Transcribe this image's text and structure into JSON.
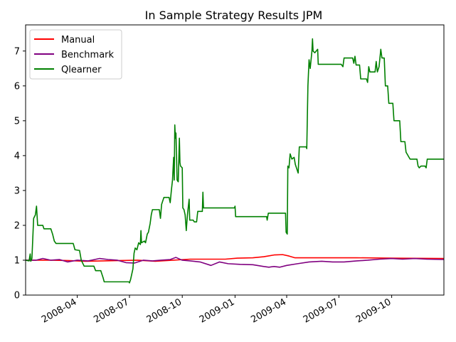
{
  "chart_data": {
    "type": "line",
    "title": "In Sample Strategy Results JPM",
    "xlabel": "",
    "ylabel": "",
    "ylim": [
      0,
      7.75
    ],
    "xlim": [
      "2008-01-02",
      "2009-12-31"
    ],
    "grid": false,
    "legend_position": "top-left",
    "y_ticks": [
      0,
      1,
      2,
      3,
      4,
      5,
      6,
      7
    ],
    "x_ticks": [
      {
        "date": "2008-04-01",
        "label": "2008-04"
      },
      {
        "date": "2008-07-01",
        "label": "2008-07"
      },
      {
        "date": "2008-10-01",
        "label": "2008-10"
      },
      {
        "date": "2009-01-01",
        "label": "2009-01"
      },
      {
        "date": "2009-04-01",
        "label": "2009-04"
      },
      {
        "date": "2009-07-01",
        "label": "2009-07"
      },
      {
        "date": "2009-10-01",
        "label": "2009-10"
      }
    ],
    "series": [
      {
        "name": "Manual",
        "color": "#ff0000",
        "points": [
          [
            "2008-01-02",
            1.0
          ],
          [
            "2008-02-15",
            1.0
          ],
          [
            "2008-03-15",
            0.99
          ],
          [
            "2008-04-15",
            0.97
          ],
          [
            "2008-05-15",
            0.98
          ],
          [
            "2008-06-15",
            0.99
          ],
          [
            "2008-07-15",
            1.0
          ],
          [
            "2008-08-15",
            0.97
          ],
          [
            "2008-09-15",
            1.0
          ],
          [
            "2008-10-15",
            1.03
          ],
          [
            "2008-11-15",
            1.03
          ],
          [
            "2008-12-15",
            1.03
          ],
          [
            "2009-01-05",
            1.06
          ],
          [
            "2009-02-01",
            1.07
          ],
          [
            "2009-02-20",
            1.1
          ],
          [
            "2009-03-10",
            1.15
          ],
          [
            "2009-03-25",
            1.16
          ],
          [
            "2009-04-05",
            1.12
          ],
          [
            "2009-04-15",
            1.07
          ],
          [
            "2009-06-01",
            1.07
          ],
          [
            "2009-08-01",
            1.07
          ],
          [
            "2009-10-01",
            1.06
          ],
          [
            "2009-12-31",
            1.05
          ]
        ]
      },
      {
        "name": "Benchmark",
        "color": "#800080",
        "points": [
          [
            "2008-01-02",
            1.0
          ],
          [
            "2008-01-20",
            1.0
          ],
          [
            "2008-02-01",
            1.05
          ],
          [
            "2008-02-15",
            1.0
          ],
          [
            "2008-03-01",
            1.02
          ],
          [
            "2008-03-15",
            0.95
          ],
          [
            "2008-04-01",
            1.0
          ],
          [
            "2008-04-20",
            0.98
          ],
          [
            "2008-05-10",
            1.05
          ],
          [
            "2008-05-25",
            1.02
          ],
          [
            "2008-06-10",
            1.0
          ],
          [
            "2008-06-25",
            0.93
          ],
          [
            "2008-07-10",
            0.92
          ],
          [
            "2008-07-25",
            1.0
          ],
          [
            "2008-08-10",
            0.98
          ],
          [
            "2008-08-25",
            1.0
          ],
          [
            "2008-09-10",
            1.02
          ],
          [
            "2008-09-20",
            1.08
          ],
          [
            "2008-10-01",
            1.0
          ],
          [
            "2008-10-15",
            0.98
          ],
          [
            "2008-11-01",
            0.95
          ],
          [
            "2008-11-20",
            0.85
          ],
          [
            "2008-12-05",
            0.95
          ],
          [
            "2008-12-20",
            0.9
          ],
          [
            "2009-01-10",
            0.88
          ],
          [
            "2009-02-01",
            0.87
          ],
          [
            "2009-02-20",
            0.82
          ],
          [
            "2009-03-01",
            0.8
          ],
          [
            "2009-03-10",
            0.82
          ],
          [
            "2009-03-20",
            0.8
          ],
          [
            "2009-04-01",
            0.85
          ],
          [
            "2009-04-20",
            0.9
          ],
          [
            "2009-05-10",
            0.95
          ],
          [
            "2009-06-01",
            0.97
          ],
          [
            "2009-06-20",
            0.95
          ],
          [
            "2009-07-10",
            0.95
          ],
          [
            "2009-08-01",
            0.98
          ],
          [
            "2009-08-20",
            1.0
          ],
          [
            "2009-09-10",
            1.03
          ],
          [
            "2009-10-01",
            1.05
          ],
          [
            "2009-10-20",
            1.03
          ],
          [
            "2009-11-10",
            1.05
          ],
          [
            "2009-12-01",
            1.03
          ],
          [
            "2009-12-31",
            1.02
          ]
        ]
      },
      {
        "name": "Qlearner",
        "color": "#008000",
        "points": [
          [
            "2008-01-02",
            1.0
          ],
          [
            "2008-01-08",
            0.98
          ],
          [
            "2008-01-10",
            1.18
          ],
          [
            "2008-01-11",
            0.97
          ],
          [
            "2008-01-13",
            1.05
          ],
          [
            "2008-01-16",
            2.2
          ],
          [
            "2008-01-19",
            2.3
          ],
          [
            "2008-01-21",
            2.55
          ],
          [
            "2008-01-23",
            2.0
          ],
          [
            "2008-02-01",
            2.0
          ],
          [
            "2008-02-03",
            1.9
          ],
          [
            "2008-02-15",
            1.9
          ],
          [
            "2008-02-18",
            1.75
          ],
          [
            "2008-02-21",
            1.55
          ],
          [
            "2008-02-24",
            1.48
          ],
          [
            "2008-03-25",
            1.48
          ],
          [
            "2008-03-28",
            1.3
          ],
          [
            "2008-04-05",
            1.28
          ],
          [
            "2008-04-08",
            1.0
          ],
          [
            "2008-04-13",
            0.83
          ],
          [
            "2008-04-30",
            0.83
          ],
          [
            "2008-05-03",
            0.7
          ],
          [
            "2008-05-12",
            0.7
          ],
          [
            "2008-05-16",
            0.5
          ],
          [
            "2008-05-18",
            0.38
          ],
          [
            "2008-06-25",
            0.38
          ],
          [
            "2008-06-30",
            0.38
          ],
          [
            "2008-07-01",
            0.35
          ],
          [
            "2008-07-03",
            0.45
          ],
          [
            "2008-07-05",
            0.6
          ],
          [
            "2008-07-07",
            0.75
          ],
          [
            "2008-07-09",
            1.2
          ],
          [
            "2008-07-11",
            1.35
          ],
          [
            "2008-07-14",
            1.3
          ],
          [
            "2008-07-17",
            1.5
          ],
          [
            "2008-07-20",
            1.45
          ],
          [
            "2008-07-21",
            1.85
          ],
          [
            "2008-07-22",
            1.5
          ],
          [
            "2008-07-27",
            1.55
          ],
          [
            "2008-07-29",
            1.5
          ],
          [
            "2008-08-01",
            1.75
          ],
          [
            "2008-08-03",
            1.8
          ],
          [
            "2008-08-06",
            2.05
          ],
          [
            "2008-08-08",
            2.3
          ],
          [
            "2008-08-10",
            2.45
          ],
          [
            "2008-08-22",
            2.45
          ],
          [
            "2008-08-24",
            2.2
          ],
          [
            "2008-08-26",
            2.6
          ],
          [
            "2008-08-30",
            2.8
          ],
          [
            "2008-09-08",
            2.8
          ],
          [
            "2008-09-10",
            2.65
          ],
          [
            "2008-09-12",
            3.0
          ],
          [
            "2008-09-14",
            3.3
          ],
          [
            "2008-09-16",
            3.95
          ],
          [
            "2008-09-17",
            3.3
          ],
          [
            "2008-09-18",
            4.88
          ],
          [
            "2008-09-19",
            4.5
          ],
          [
            "2008-09-20",
            4.65
          ],
          [
            "2008-09-22",
            3.3
          ],
          [
            "2008-09-24",
            3.25
          ],
          [
            "2008-09-26",
            4.5
          ],
          [
            "2008-09-27",
            3.8
          ],
          [
            "2008-09-28",
            3.7
          ],
          [
            "2008-10-01",
            3.65
          ],
          [
            "2008-10-02",
            2.5
          ],
          [
            "2008-10-04",
            2.45
          ],
          [
            "2008-10-06",
            2.3
          ],
          [
            "2008-10-08",
            1.85
          ],
          [
            "2008-10-10",
            2.3
          ],
          [
            "2008-10-13",
            2.75
          ],
          [
            "2008-10-14",
            2.15
          ],
          [
            "2008-10-20",
            2.15
          ],
          [
            "2008-10-22",
            2.1
          ],
          [
            "2008-10-26",
            2.1
          ],
          [
            "2008-10-28",
            2.4
          ],
          [
            "2008-11-05",
            2.4
          ],
          [
            "2008-11-06",
            2.95
          ],
          [
            "2008-11-07",
            2.5
          ],
          [
            "2008-12-31",
            2.5
          ],
          [
            "2009-01-01",
            2.55
          ],
          [
            "2009-01-02",
            2.25
          ],
          [
            "2009-02-25",
            2.25
          ],
          [
            "2009-02-26",
            2.15
          ],
          [
            "2009-02-28",
            2.35
          ],
          [
            "2009-03-30",
            2.35
          ],
          [
            "2009-03-31",
            1.8
          ],
          [
            "2009-04-02",
            1.75
          ],
          [
            "2009-04-03",
            3.7
          ],
          [
            "2009-04-05",
            3.65
          ],
          [
            "2009-04-07",
            4.05
          ],
          [
            "2009-04-10",
            3.9
          ],
          [
            "2009-04-14",
            3.95
          ],
          [
            "2009-04-16",
            3.75
          ],
          [
            "2009-04-19",
            3.6
          ],
          [
            "2009-04-21",
            3.5
          ],
          [
            "2009-04-23",
            4.25
          ],
          [
            "2009-05-05",
            4.25
          ],
          [
            "2009-05-06",
            4.2
          ],
          [
            "2009-05-08",
            6.0
          ],
          [
            "2009-05-10",
            6.75
          ],
          [
            "2009-05-12",
            6.5
          ],
          [
            "2009-05-15",
            7.0
          ],
          [
            "2009-05-16",
            7.35
          ],
          [
            "2009-05-17",
            7.0
          ],
          [
            "2009-05-20",
            6.95
          ],
          [
            "2009-05-25",
            7.05
          ],
          [
            "2009-05-26",
            6.62
          ],
          [
            "2009-07-05",
            6.62
          ],
          [
            "2009-07-08",
            6.55
          ],
          [
            "2009-07-10",
            6.8
          ],
          [
            "2009-07-25",
            6.8
          ],
          [
            "2009-07-27",
            6.65
          ],
          [
            "2009-07-29",
            6.85
          ],
          [
            "2009-07-31",
            6.6
          ],
          [
            "2009-08-06",
            6.6
          ],
          [
            "2009-08-08",
            6.2
          ],
          [
            "2009-08-18",
            6.2
          ],
          [
            "2009-08-20",
            6.1
          ],
          [
            "2009-08-22",
            6.55
          ],
          [
            "2009-08-24",
            6.4
          ],
          [
            "2009-09-02",
            6.4
          ],
          [
            "2009-09-04",
            6.7
          ],
          [
            "2009-09-06",
            6.4
          ],
          [
            "2009-09-09",
            6.55
          ],
          [
            "2009-09-12",
            7.05
          ],
          [
            "2009-09-14",
            6.8
          ],
          [
            "2009-09-18",
            6.8
          ],
          [
            "2009-09-20",
            6.0
          ],
          [
            "2009-09-24",
            6.0
          ],
          [
            "2009-09-26",
            5.5
          ],
          [
            "2009-10-03",
            5.5
          ],
          [
            "2009-10-05",
            5.0
          ],
          [
            "2009-10-15",
            5.0
          ],
          [
            "2009-10-17",
            4.4
          ],
          [
            "2009-10-24",
            4.4
          ],
          [
            "2009-10-26",
            4.1
          ],
          [
            "2009-11-02",
            3.9
          ],
          [
            "2009-11-14",
            3.9
          ],
          [
            "2009-11-16",
            3.7
          ],
          [
            "2009-11-18",
            3.65
          ],
          [
            "2009-11-21",
            3.7
          ],
          [
            "2009-11-28",
            3.7
          ],
          [
            "2009-11-30",
            3.65
          ],
          [
            "2009-12-02",
            3.9
          ],
          [
            "2009-12-31",
            3.9
          ]
        ]
      }
    ]
  }
}
